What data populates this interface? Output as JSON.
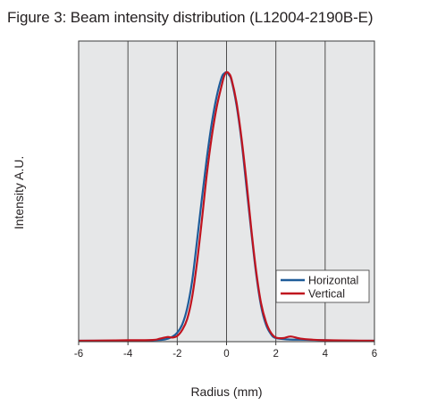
{
  "chart_data": {
    "type": "line",
    "title": "Figure 3: Beam intensity distribution (L12004-2190B-E)",
    "xlabel": "Radius (mm)",
    "ylabel": "Intensity A.U.",
    "xlim": [
      -6,
      6
    ],
    "ylim": [
      0,
      1
    ],
    "x_ticks": [
      -6,
      -4,
      -2,
      0,
      2,
      4,
      6
    ],
    "x_tick_labels": [
      "-6",
      "-4",
      "-2",
      "0",
      "2",
      "4",
      "6"
    ],
    "grid": "vertical",
    "legend_position": "right",
    "series": [
      {
        "name": "Horizontal",
        "color": "#1f5c99",
        "x": [
          -6.0,
          -5.0,
          -4.0,
          -3.0,
          -2.5,
          -2.2,
          -2.0,
          -1.8,
          -1.6,
          -1.4,
          -1.2,
          -1.0,
          -0.8,
          -0.6,
          -0.4,
          -0.2,
          -0.1,
          0.0,
          0.1,
          0.2,
          0.4,
          0.6,
          0.8,
          1.0,
          1.2,
          1.4,
          1.6,
          1.8,
          2.0,
          2.5,
          3.0,
          4.0,
          5.0,
          6.0
        ],
        "y": [
          0.0,
          0.0,
          0.0,
          0.002,
          0.005,
          0.015,
          0.03,
          0.06,
          0.12,
          0.22,
          0.37,
          0.53,
          0.68,
          0.81,
          0.91,
          0.98,
          0.995,
          1.0,
          0.99,
          0.97,
          0.88,
          0.75,
          0.58,
          0.41,
          0.25,
          0.13,
          0.06,
          0.025,
          0.01,
          0.005,
          0.004,
          0.002,
          0.0,
          0.0
        ]
      },
      {
        "name": "Vertical",
        "color": "#c0141f",
        "x": [
          -6.0,
          -5.0,
          -4.0,
          -3.0,
          -2.7,
          -2.4,
          -2.2,
          -2.0,
          -1.8,
          -1.6,
          -1.4,
          -1.2,
          -1.0,
          -0.8,
          -0.6,
          -0.4,
          -0.2,
          -0.1,
          0.0,
          0.1,
          0.2,
          0.4,
          0.6,
          0.8,
          1.0,
          1.2,
          1.4,
          1.6,
          1.8,
          2.0,
          2.3,
          2.6,
          3.0,
          3.5,
          4.0,
          5.0,
          6.0
        ],
        "y": [
          0.0,
          0.001,
          0.002,
          0.003,
          0.008,
          0.014,
          0.012,
          0.018,
          0.04,
          0.08,
          0.16,
          0.29,
          0.45,
          0.62,
          0.76,
          0.87,
          0.95,
          0.985,
          1.0,
          0.995,
          0.975,
          0.89,
          0.76,
          0.6,
          0.42,
          0.26,
          0.14,
          0.07,
          0.03,
          0.012,
          0.01,
          0.016,
          0.008,
          0.004,
          0.002,
          0.001,
          0.0
        ]
      }
    ]
  }
}
